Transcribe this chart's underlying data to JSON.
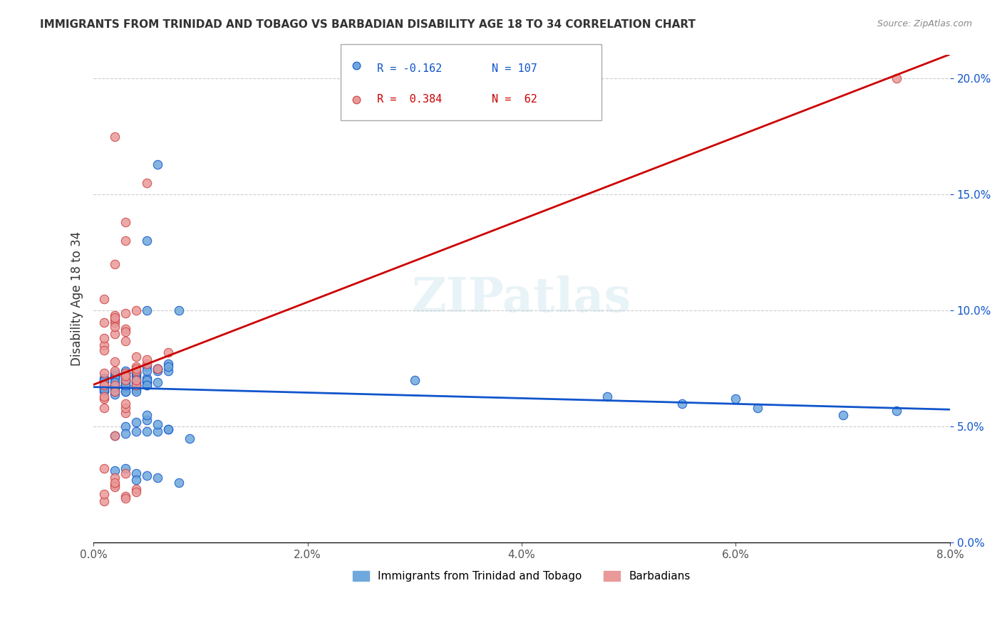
{
  "title": "IMMIGRANTS FROM TRINIDAD AND TOBAGO VS BARBADIAN DISABILITY AGE 18 TO 34 CORRELATION CHART",
  "source": "Source: ZipAtlas.com",
  "xlabel_bottom": "Immigrants from Trinidad and Tobago",
  "ylabel": "Disability Age 18 to 34",
  "legend_label_1": "Immigrants from Trinidad and Tobago",
  "legend_label_2": "Barbadians",
  "R1": "-0.162",
  "N1": "107",
  "R2": "0.384",
  "N2": "62",
  "color1": "#6fa8dc",
  "color2": "#ea9999",
  "trend_color1": "#1155cc",
  "trend_color2": "#cc0000",
  "watermark": "ZIPatlas",
  "xlim": [
    0.0,
    0.08
  ],
  "ylim": [
    0.0,
    0.21
  ],
  "blue_scatter_x": [
    0.002,
    0.003,
    0.001,
    0.004,
    0.005,
    0.002,
    0.003,
    0.001,
    0.006,
    0.004,
    0.002,
    0.003,
    0.005,
    0.001,
    0.002,
    0.004,
    0.003,
    0.002,
    0.001,
    0.003,
    0.004,
    0.002,
    0.005,
    0.003,
    0.001,
    0.004,
    0.002,
    0.003,
    0.006,
    0.002,
    0.005,
    0.004,
    0.003,
    0.007,
    0.002,
    0.001,
    0.004,
    0.003,
    0.005,
    0.002,
    0.006,
    0.003,
    0.004,
    0.002,
    0.003,
    0.005,
    0.004,
    0.001,
    0.003,
    0.002,
    0.004,
    0.006,
    0.003,
    0.005,
    0.002,
    0.004,
    0.007,
    0.003,
    0.001,
    0.005,
    0.004,
    0.003,
    0.006,
    0.002,
    0.005,
    0.003,
    0.004,
    0.002,
    0.008,
    0.003,
    0.005,
    0.004,
    0.006,
    0.003,
    0.002,
    0.005,
    0.004,
    0.003,
    0.007,
    0.002,
    0.009,
    0.004,
    0.005,
    0.003,
    0.006,
    0.004,
    0.002,
    0.005,
    0.003,
    0.007,
    0.004,
    0.006,
    0.003,
    0.005,
    0.004,
    0.002,
    0.008,
    0.005,
    0.006,
    0.007,
    0.055,
    0.062,
    0.07,
    0.048,
    0.075,
    0.06,
    0.03
  ],
  "blue_scatter_y": [
    0.072,
    0.068,
    0.065,
    0.071,
    0.069,
    0.064,
    0.07,
    0.066,
    0.163,
    0.073,
    0.068,
    0.072,
    0.1,
    0.071,
    0.069,
    0.067,
    0.073,
    0.068,
    0.07,
    0.072,
    0.074,
    0.066,
    0.076,
    0.07,
    0.069,
    0.068,
    0.071,
    0.073,
    0.075,
    0.065,
    0.13,
    0.072,
    0.069,
    0.074,
    0.067,
    0.07,
    0.068,
    0.073,
    0.069,
    0.071,
    0.075,
    0.074,
    0.069,
    0.068,
    0.072,
    0.07,
    0.066,
    0.067,
    0.071,
    0.073,
    0.068,
    0.074,
    0.07,
    0.068,
    0.072,
    0.065,
    0.077,
    0.069,
    0.066,
    0.071,
    0.073,
    0.068,
    0.075,
    0.067,
    0.07,
    0.065,
    0.069,
    0.072,
    0.1,
    0.067,
    0.068,
    0.073,
    0.069,
    0.065,
    0.071,
    0.074,
    0.07,
    0.068,
    0.076,
    0.069,
    0.045,
    0.048,
    0.053,
    0.05,
    0.048,
    0.052,
    0.046,
    0.055,
    0.047,
    0.049,
    0.03,
    0.028,
    0.032,
    0.029,
    0.027,
    0.031,
    0.026,
    0.048,
    0.051,
    0.049,
    0.06,
    0.058,
    0.055,
    0.063,
    0.057,
    0.062,
    0.07
  ],
  "pink_scatter_x": [
    0.001,
    0.002,
    0.001,
    0.003,
    0.001,
    0.002,
    0.003,
    0.001,
    0.002,
    0.004,
    0.002,
    0.003,
    0.001,
    0.002,
    0.003,
    0.001,
    0.002,
    0.003,
    0.004,
    0.001,
    0.002,
    0.003,
    0.001,
    0.004,
    0.002,
    0.003,
    0.005,
    0.002,
    0.003,
    0.001,
    0.004,
    0.002,
    0.003,
    0.001,
    0.002,
    0.004,
    0.003,
    0.002,
    0.001,
    0.003,
    0.004,
    0.002,
    0.003,
    0.001,
    0.002,
    0.003,
    0.004,
    0.002,
    0.003,
    0.001,
    0.006,
    0.005,
    0.004,
    0.007,
    0.005,
    0.003,
    0.004,
    0.002,
    0.003,
    0.001,
    0.002,
    0.075
  ],
  "pink_scatter_y": [
    0.068,
    0.12,
    0.095,
    0.138,
    0.105,
    0.09,
    0.13,
    0.085,
    0.098,
    0.1,
    0.095,
    0.072,
    0.068,
    0.096,
    0.099,
    0.073,
    0.097,
    0.092,
    0.074,
    0.088,
    0.093,
    0.07,
    0.083,
    0.076,
    0.068,
    0.091,
    0.155,
    0.074,
    0.087,
    0.058,
    0.068,
    0.046,
    0.056,
    0.032,
    0.025,
    0.023,
    0.03,
    0.028,
    0.018,
    0.02,
    0.022,
    0.024,
    0.019,
    0.021,
    0.026,
    0.058,
    0.075,
    0.078,
    0.073,
    0.062,
    0.075,
    0.077,
    0.08,
    0.082,
    0.079,
    0.072,
    0.07,
    0.065,
    0.06,
    0.063,
    0.175,
    0.2
  ]
}
